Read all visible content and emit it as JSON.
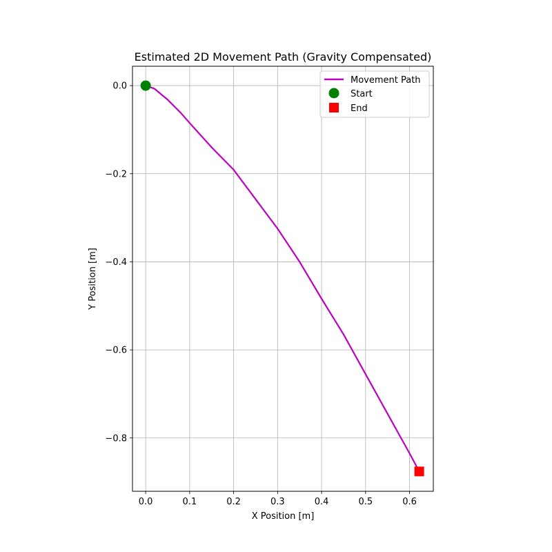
{
  "chart_data": {
    "type": "line",
    "title": "Estimated 2D Movement Path (Gravity Compensated)",
    "xlabel": "X Position [m]",
    "ylabel": "Y Position [m]",
    "xlim": [
      -0.03,
      0.654
    ],
    "ylim": [
      -0.921,
      0.044
    ],
    "xticks": [
      0.0,
      0.1,
      0.2,
      0.3,
      0.4,
      0.5,
      0.6
    ],
    "xtick_labels": [
      "0.0",
      "0.1",
      "0.2",
      "0.3",
      "0.4",
      "0.5",
      "0.6"
    ],
    "yticks": [
      0.0,
      -0.2,
      -0.4,
      -0.6,
      -0.8
    ],
    "ytick_labels": [
      "0.0",
      "−0.2",
      "−0.4",
      "−0.6",
      "−0.8"
    ],
    "grid": true,
    "legend_position": "top-right",
    "series": [
      {
        "name": "Movement Path",
        "color": "#bf00bf",
        "x": [
          0.0,
          0.02,
          0.05,
          0.08,
          0.1,
          0.15,
          0.2,
          0.25,
          0.3,
          0.35,
          0.4,
          0.45,
          0.5,
          0.55,
          0.6,
          0.622
        ],
        "y": [
          0.0,
          -0.007,
          -0.032,
          -0.062,
          -0.085,
          -0.14,
          -0.191,
          -0.258,
          -0.325,
          -0.4,
          -0.484,
          -0.565,
          -0.655,
          -0.745,
          -0.835,
          -0.876
        ]
      }
    ],
    "markers": [
      {
        "name": "Start",
        "shape": "circle",
        "color": "#008000",
        "x": 0.0,
        "y": 0.0
      },
      {
        "name": "End",
        "shape": "square",
        "color": "#ff0000",
        "x": 0.622,
        "y": -0.876
      }
    ]
  }
}
